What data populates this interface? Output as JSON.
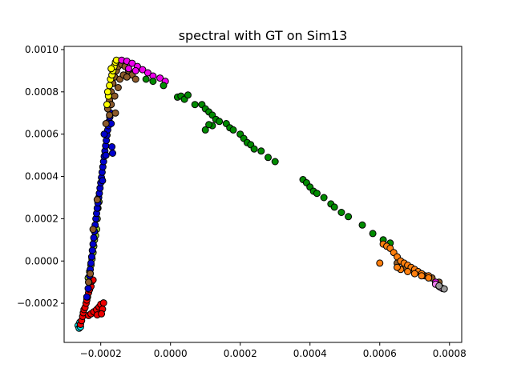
{
  "chart_data": {
    "type": "scatter",
    "title": "spectral with GT on Sim13",
    "xlabel": "",
    "ylabel": "",
    "xlim": [
      -0.000305,
      0.000835
    ],
    "ylim": [
      -0.000385,
      0.001015
    ],
    "grid": false,
    "legend": "none",
    "x_ticks": [
      {
        "value": -0.0002,
        "label": "−0.0002"
      },
      {
        "value": 0.0,
        "label": "0.0000"
      },
      {
        "value": 0.0002,
        "label": "0.0002"
      },
      {
        "value": 0.0004,
        "label": "0.0004"
      },
      {
        "value": 0.0006,
        "label": "0.0006"
      },
      {
        "value": 0.0008,
        "label": "0.0008"
      }
    ],
    "y_ticks": [
      {
        "value": -0.0002,
        "label": "−0.0002"
      },
      {
        "value": 0.0,
        "label": "0.0000"
      },
      {
        "value": 0.0002,
        "label": "0.0002"
      },
      {
        "value": 0.0004,
        "label": "0.0004"
      },
      {
        "value": 0.0006,
        "label": "0.0006"
      },
      {
        "value": 0.0008,
        "label": "0.0008"
      },
      {
        "value": 0.001,
        "label": "0.0010"
      }
    ],
    "series": [
      {
        "name": "cyan",
        "color": "#00e5ee",
        "points": [
          [
            -0.000265,
            -0.000305
          ],
          [
            -0.000262,
            -0.000318
          ],
          [
            -0.00026,
            -0.00029
          ],
          [
            -0.000258,
            -0.000312
          ]
        ]
      },
      {
        "name": "red",
        "color": "#ee0000",
        "points": [
          [
            -0.000258,
            -0.0003
          ],
          [
            -0.000255,
            -0.000282
          ],
          [
            -0.000252,
            -0.000262
          ],
          [
            -0.00025,
            -0.000245
          ],
          [
            -0.000248,
            -0.00023
          ],
          [
            -0.000245,
            -0.00022
          ],
          [
            -0.000242,
            -0.0002
          ],
          [
            -0.00024,
            -0.000185
          ],
          [
            -0.000238,
            -0.00017
          ],
          [
            -0.000235,
            -0.00015
          ],
          [
            -0.000232,
            -0.000135
          ],
          [
            -0.000228,
            -0.00012
          ],
          [
            -0.000225,
            -9.5e-05
          ],
          [
            -0.000222,
            -9e-05
          ],
          [
            -0.000235,
            -0.000258
          ],
          [
            -0.000228,
            -0.00025
          ],
          [
            -0.00022,
            -0.00024
          ],
          [
            -0.000212,
            -0.00023
          ],
          [
            -0.000205,
            -0.000218
          ],
          [
            -0.0002,
            -0.000205
          ],
          [
            -0.000195,
            -0.000228
          ],
          [
            -0.000192,
            -0.000198
          ],
          [
            -0.00021,
            -0.000255
          ],
          [
            -0.000198,
            -0.00025
          ]
        ]
      },
      {
        "name": "yellowgreen",
        "color": "#9acd32",
        "points": [
          [
            -0.000236,
            -8e-05
          ],
          [
            -0.000232,
            -5e-05
          ],
          [
            -0.000228,
            -2e-05
          ],
          [
            -0.000225,
            1e-05
          ],
          [
            -0.000222,
            4e-05
          ],
          [
            -0.00022,
            7e-05
          ],
          [
            -0.000218,
            0.0001
          ],
          [
            -0.000215,
            0.00012
          ],
          [
            -0.000212,
            0.00015
          ],
          [
            -0.00021,
            0.0002
          ],
          [
            -0.000208,
            0.00025
          ],
          [
            -0.000205,
            0.00028
          ]
        ]
      },
      {
        "name": "blue",
        "color": "#0000cd",
        "points": [
          [
            -0.00024,
            -0.00017
          ],
          [
            -0.000236,
            -0.00013
          ],
          [
            -0.000234,
            -0.0001
          ],
          [
            -0.000232,
            -7e-05
          ],
          [
            -0.00023,
            -4e-05
          ],
          [
            -0.000228,
            -1e-05
          ],
          [
            -0.000226,
            2e-05
          ],
          [
            -0.000224,
            5e-05
          ],
          [
            -0.000222,
            8e-05
          ],
          [
            -0.00022,
            0.00011
          ],
          [
            -0.000218,
            0.00014
          ],
          [
            -0.000216,
            0.00017
          ],
          [
            -0.000214,
            0.0002
          ],
          [
            -0.000212,
            0.000225
          ],
          [
            -0.00021,
            0.00025
          ],
          [
            -0.000208,
            0.000275
          ],
          [
            -0.000206,
            0.0003
          ],
          [
            -0.000204,
            0.00032
          ],
          [
            -0.000202,
            0.000345
          ],
          [
            -0.0002,
            0.00037
          ],
          [
            -0.000198,
            0.000395
          ],
          [
            -0.000196,
            0.00042
          ],
          [
            -0.000194,
            0.000445
          ],
          [
            -0.000192,
            0.00047
          ],
          [
            -0.00019,
            0.000495
          ],
          [
            -0.000188,
            0.00052
          ],
          [
            -0.000186,
            0.000545
          ],
          [
            -0.000184,
            0.00057
          ],
          [
            -0.000182,
            0.000595
          ],
          [
            -0.00018,
            0.00062
          ],
          [
            -0.000178,
            0.00064
          ],
          [
            -0.000176,
            0.00066
          ],
          [
            -0.000174,
            0.00068
          ],
          [
            -0.000172,
            0.0007
          ],
          [
            -0.00017,
            0.00065
          ],
          [
            -0.000168,
            0.00054
          ],
          [
            -0.000166,
            0.00051
          ],
          [
            -0.00019,
            0.0006
          ],
          [
            -0.000185,
            0.0005
          ],
          [
            -0.000195,
            0.00038
          ]
        ]
      },
      {
        "name": "brown",
        "color": "#8b5a2b",
        "points": [
          [
            -0.000235,
            -0.0001
          ],
          [
            -0.00023,
            -6e-05
          ],
          [
            -0.000222,
            0.00015
          ],
          [
            -0.00021,
            0.00029
          ],
          [
            -0.000185,
            0.00065
          ],
          [
            -0.00018,
            0.00072
          ],
          [
            -0.000175,
            0.00076
          ],
          [
            -0.00017,
            0.0008
          ],
          [
            -0.000165,
            0.00084
          ],
          [
            -0.00016,
            0.00087
          ],
          [
            -0.000155,
            0.0009
          ],
          [
            -0.00015,
            0.00092
          ],
          [
            -0.00014,
            0.00093
          ],
          [
            -0.00013,
            0.00092
          ],
          [
            -0.00012,
            0.0009
          ],
          [
            -0.00011,
            0.00088
          ],
          [
            -0.0001,
            0.00086
          ],
          [
            -0.00017,
            0.00074
          ],
          [
            -0.00016,
            0.00078
          ],
          [
            -0.00015,
            0.00082
          ],
          [
            -0.000145,
            0.00086
          ],
          [
            -0.000135,
            0.00088
          ],
          [
            -0.000125,
            0.00087
          ],
          [
            -0.000158,
            0.0007
          ],
          [
            -0.000175,
            0.00069
          ],
          [
            0.00065,
            -1e-05
          ],
          [
            0.00067,
            -3e-05
          ],
          [
            0.00069,
            -4e-05
          ],
          [
            0.00071,
            -5e-05
          ],
          [
            0.00073,
            -7e-05
          ],
          [
            0.00075,
            -8e-05
          ],
          [
            0.00077,
            -0.0001
          ]
        ]
      },
      {
        "name": "yellow",
        "color": "#ffff00",
        "points": [
          [
            -0.000182,
            0.00074
          ],
          [
            -0.000178,
            0.00078
          ],
          [
            -0.000175,
            0.00083
          ],
          [
            -0.000172,
            0.00086
          ],
          [
            -0.000168,
            0.00088
          ],
          [
            -0.000165,
            0.0009
          ],
          [
            -0.000162,
            0.00092
          ],
          [
            -0.000158,
            0.00094
          ],
          [
            -0.000155,
            0.00095
          ],
          [
            -0.00018,
            0.0008
          ],
          [
            -0.00017,
            0.00091
          ]
        ]
      },
      {
        "name": "magenta",
        "color": "#ee00ee",
        "points": [
          [
            -0.00014,
            0.00095
          ],
          [
            -0.000125,
            0.000945
          ],
          [
            -0.00011,
            0.000935
          ],
          [
            -9.5e-05,
            0.00092
          ],
          [
            -8e-05,
            0.000905
          ],
          [
            -6.5e-05,
            0.00089
          ],
          [
            -5e-05,
            0.000875
          ],
          [
            -3e-05,
            0.000865
          ],
          [
            -1.5e-05,
            0.00085
          ],
          [
            -0.00012,
            0.00091
          ],
          [
            -0.0001,
            0.0009
          ],
          [
            0.00076,
            -0.0001
          ]
        ]
      },
      {
        "name": "green",
        "color": "#008b00",
        "points": [
          [
            -7e-05,
            0.00086
          ],
          [
            -5e-05,
            0.00085
          ],
          [
            -2e-05,
            0.00083
          ],
          [
            2e-05,
            0.000775
          ],
          [
            3e-05,
            0.00078
          ],
          [
            4e-05,
            0.000765
          ],
          [
            5e-05,
            0.000785
          ],
          [
            7e-05,
            0.00074
          ],
          [
            9e-05,
            0.00074
          ],
          [
            0.0001,
            0.00072
          ],
          [
            0.00011,
            0.000705
          ],
          [
            0.00012,
            0.00069
          ],
          [
            0.00013,
            0.00067
          ],
          [
            0.00012,
            0.00064
          ],
          [
            0.00014,
            0.00066
          ],
          [
            0.00016,
            0.00065
          ],
          [
            0.00017,
            0.00063
          ],
          [
            0.00018,
            0.00062
          ],
          [
            0.0002,
            0.0006
          ],
          [
            0.00021,
            0.00058
          ],
          [
            0.00022,
            0.00056
          ],
          [
            0.00023,
            0.00055
          ],
          [
            0.00024,
            0.00053
          ],
          [
            0.00026,
            0.00052
          ],
          [
            0.00028,
            0.00049
          ],
          [
            0.0003,
            0.00047
          ],
          [
            0.00038,
            0.000385
          ],
          [
            0.00039,
            0.00037
          ],
          [
            0.0004,
            0.00035
          ],
          [
            0.00041,
            0.00033
          ],
          [
            0.00042,
            0.00032
          ],
          [
            0.00044,
            0.0003
          ],
          [
            0.00046,
            0.00027
          ],
          [
            0.00047,
            0.000255
          ],
          [
            0.00049,
            0.00023
          ],
          [
            0.00051,
            0.00021
          ],
          [
            0.00055,
            0.00017
          ],
          [
            0.00058,
            0.00013
          ],
          [
            0.00061,
            0.0001
          ],
          [
            0.00063,
            8.5e-05
          ],
          [
            0.0001,
            0.00062
          ],
          [
            0.00011,
            0.000645
          ]
        ]
      },
      {
        "name": "orange",
        "color": "#ff7f0e",
        "points": [
          [
            0.0006,
            -1e-05
          ],
          [
            0.00061,
            8e-05
          ],
          [
            0.00062,
            7e-05
          ],
          [
            0.00063,
            6e-05
          ],
          [
            0.00064,
            4e-05
          ],
          [
            0.00065,
            2e-05
          ],
          [
            0.00066,
            0.0
          ],
          [
            0.00067,
            -1e-05
          ],
          [
            0.00068,
            -2e-05
          ],
          [
            0.00069,
            -3e-05
          ],
          [
            0.0007,
            -4e-05
          ],
          [
            0.00071,
            -5e-05
          ],
          [
            0.00072,
            -6e-05
          ],
          [
            0.00074,
            -7e-05
          ],
          [
            0.00066,
            -4e-05
          ],
          [
            0.00068,
            -5e-05
          ],
          [
            0.0007,
            -6e-05
          ],
          [
            0.00072,
            -7e-05
          ],
          [
            0.00074,
            -8e-05
          ],
          [
            0.00065,
            -3e-05
          ]
        ]
      },
      {
        "name": "plum",
        "color": "#ee82ee",
        "points": [
          [
            0.00076,
            -0.00011
          ],
          [
            0.00077,
            -0.00012
          ],
          [
            0.00078,
            -0.00013
          ],
          [
            0.000775,
            -0.000125
          ]
        ]
      },
      {
        "name": "gray",
        "color": "#999999",
        "points": [
          [
            0.000785,
            -0.000132
          ],
          [
            0.00077,
            -0.000118
          ]
        ]
      }
    ]
  }
}
